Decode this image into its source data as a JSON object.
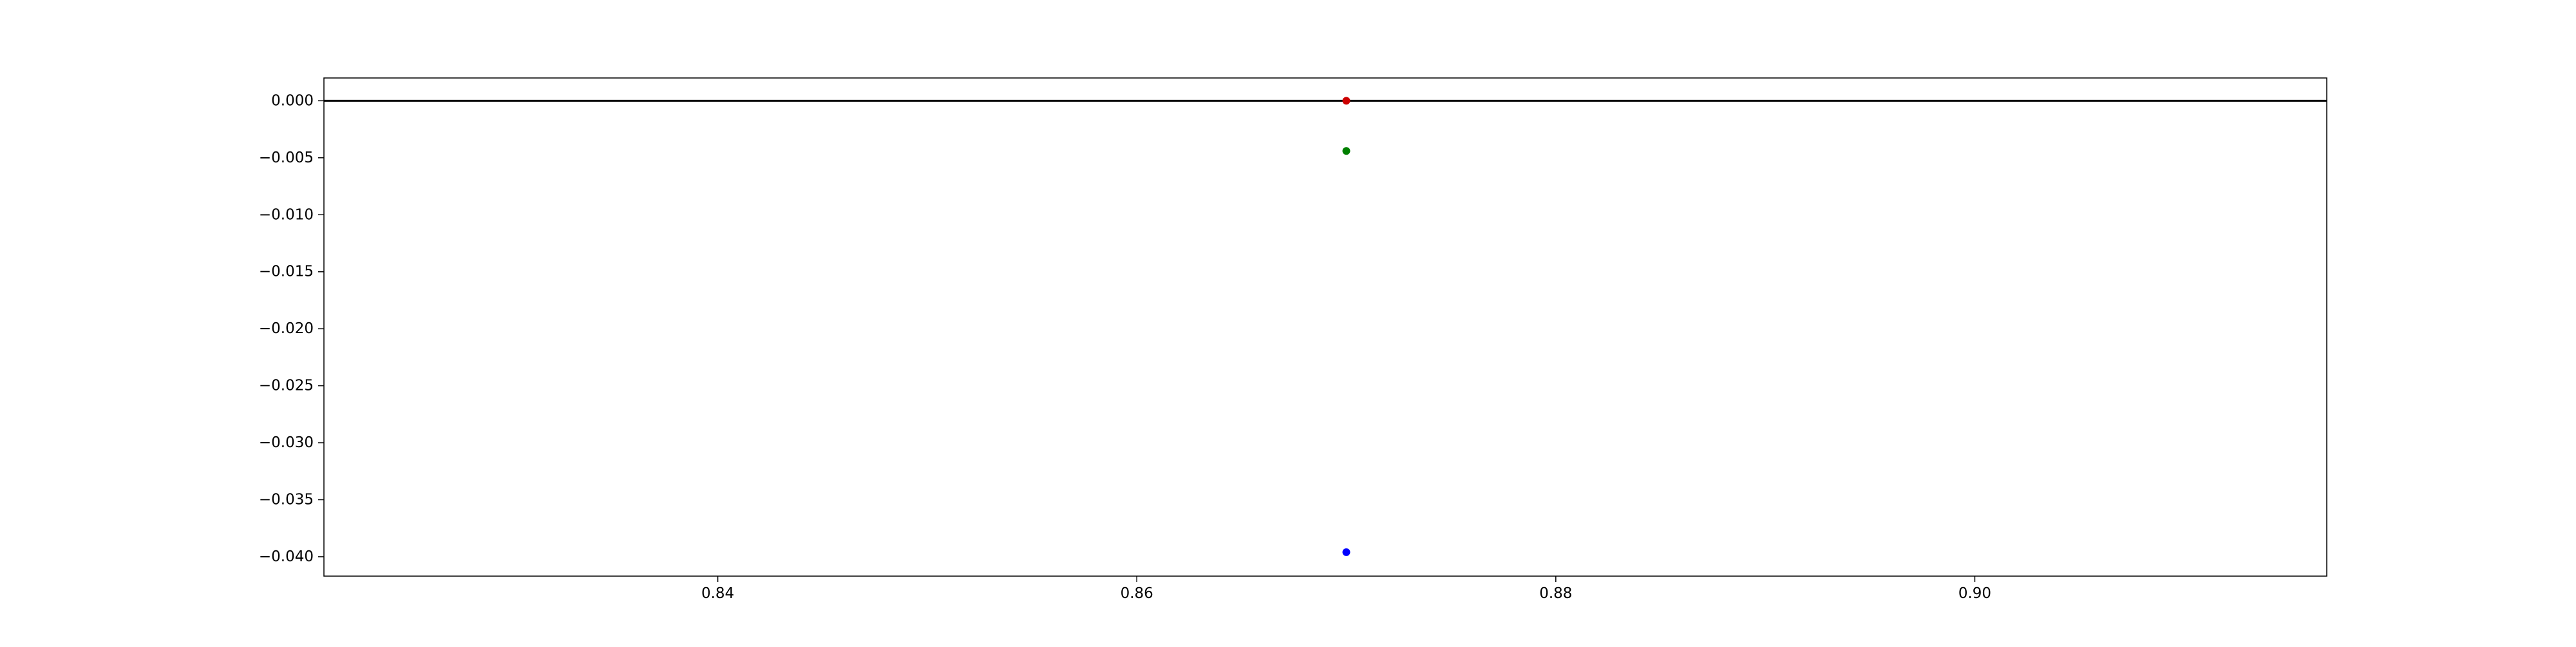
{
  "chart_data": {
    "type": "scatter",
    "title": "",
    "xlabel": "",
    "ylabel": "",
    "xlim": [
      0.8212,
      0.9168
    ],
    "ylim": [
      -0.0417,
      0.002
    ],
    "xticks": [
      0.84,
      0.86,
      0.88,
      0.9
    ],
    "xtick_labels": [
      "0.84",
      "0.86",
      "0.88",
      "0.90"
    ],
    "yticks": [
      0.0,
      -0.005,
      -0.01,
      -0.015,
      -0.02,
      -0.025,
      -0.03,
      -0.035,
      -0.04
    ],
    "ytick_labels": [
      "0.000",
      "−0.005",
      "−0.010",
      "−0.015",
      "−0.020",
      "−0.025",
      "−0.030",
      "−0.035",
      "−0.040"
    ],
    "grid": false,
    "hline": {
      "y": 0.0,
      "color": "#000000"
    },
    "series": [
      {
        "x": [
          0.87
        ],
        "y": [
          0.0
        ],
        "color": "#cc0000"
      },
      {
        "x": [
          0.87
        ],
        "y": [
          -0.0044
        ],
        "color": "#007f00"
      },
      {
        "x": [
          0.87
        ],
        "y": [
          -0.0396
        ],
        "color": "#0000ff"
      }
    ]
  }
}
